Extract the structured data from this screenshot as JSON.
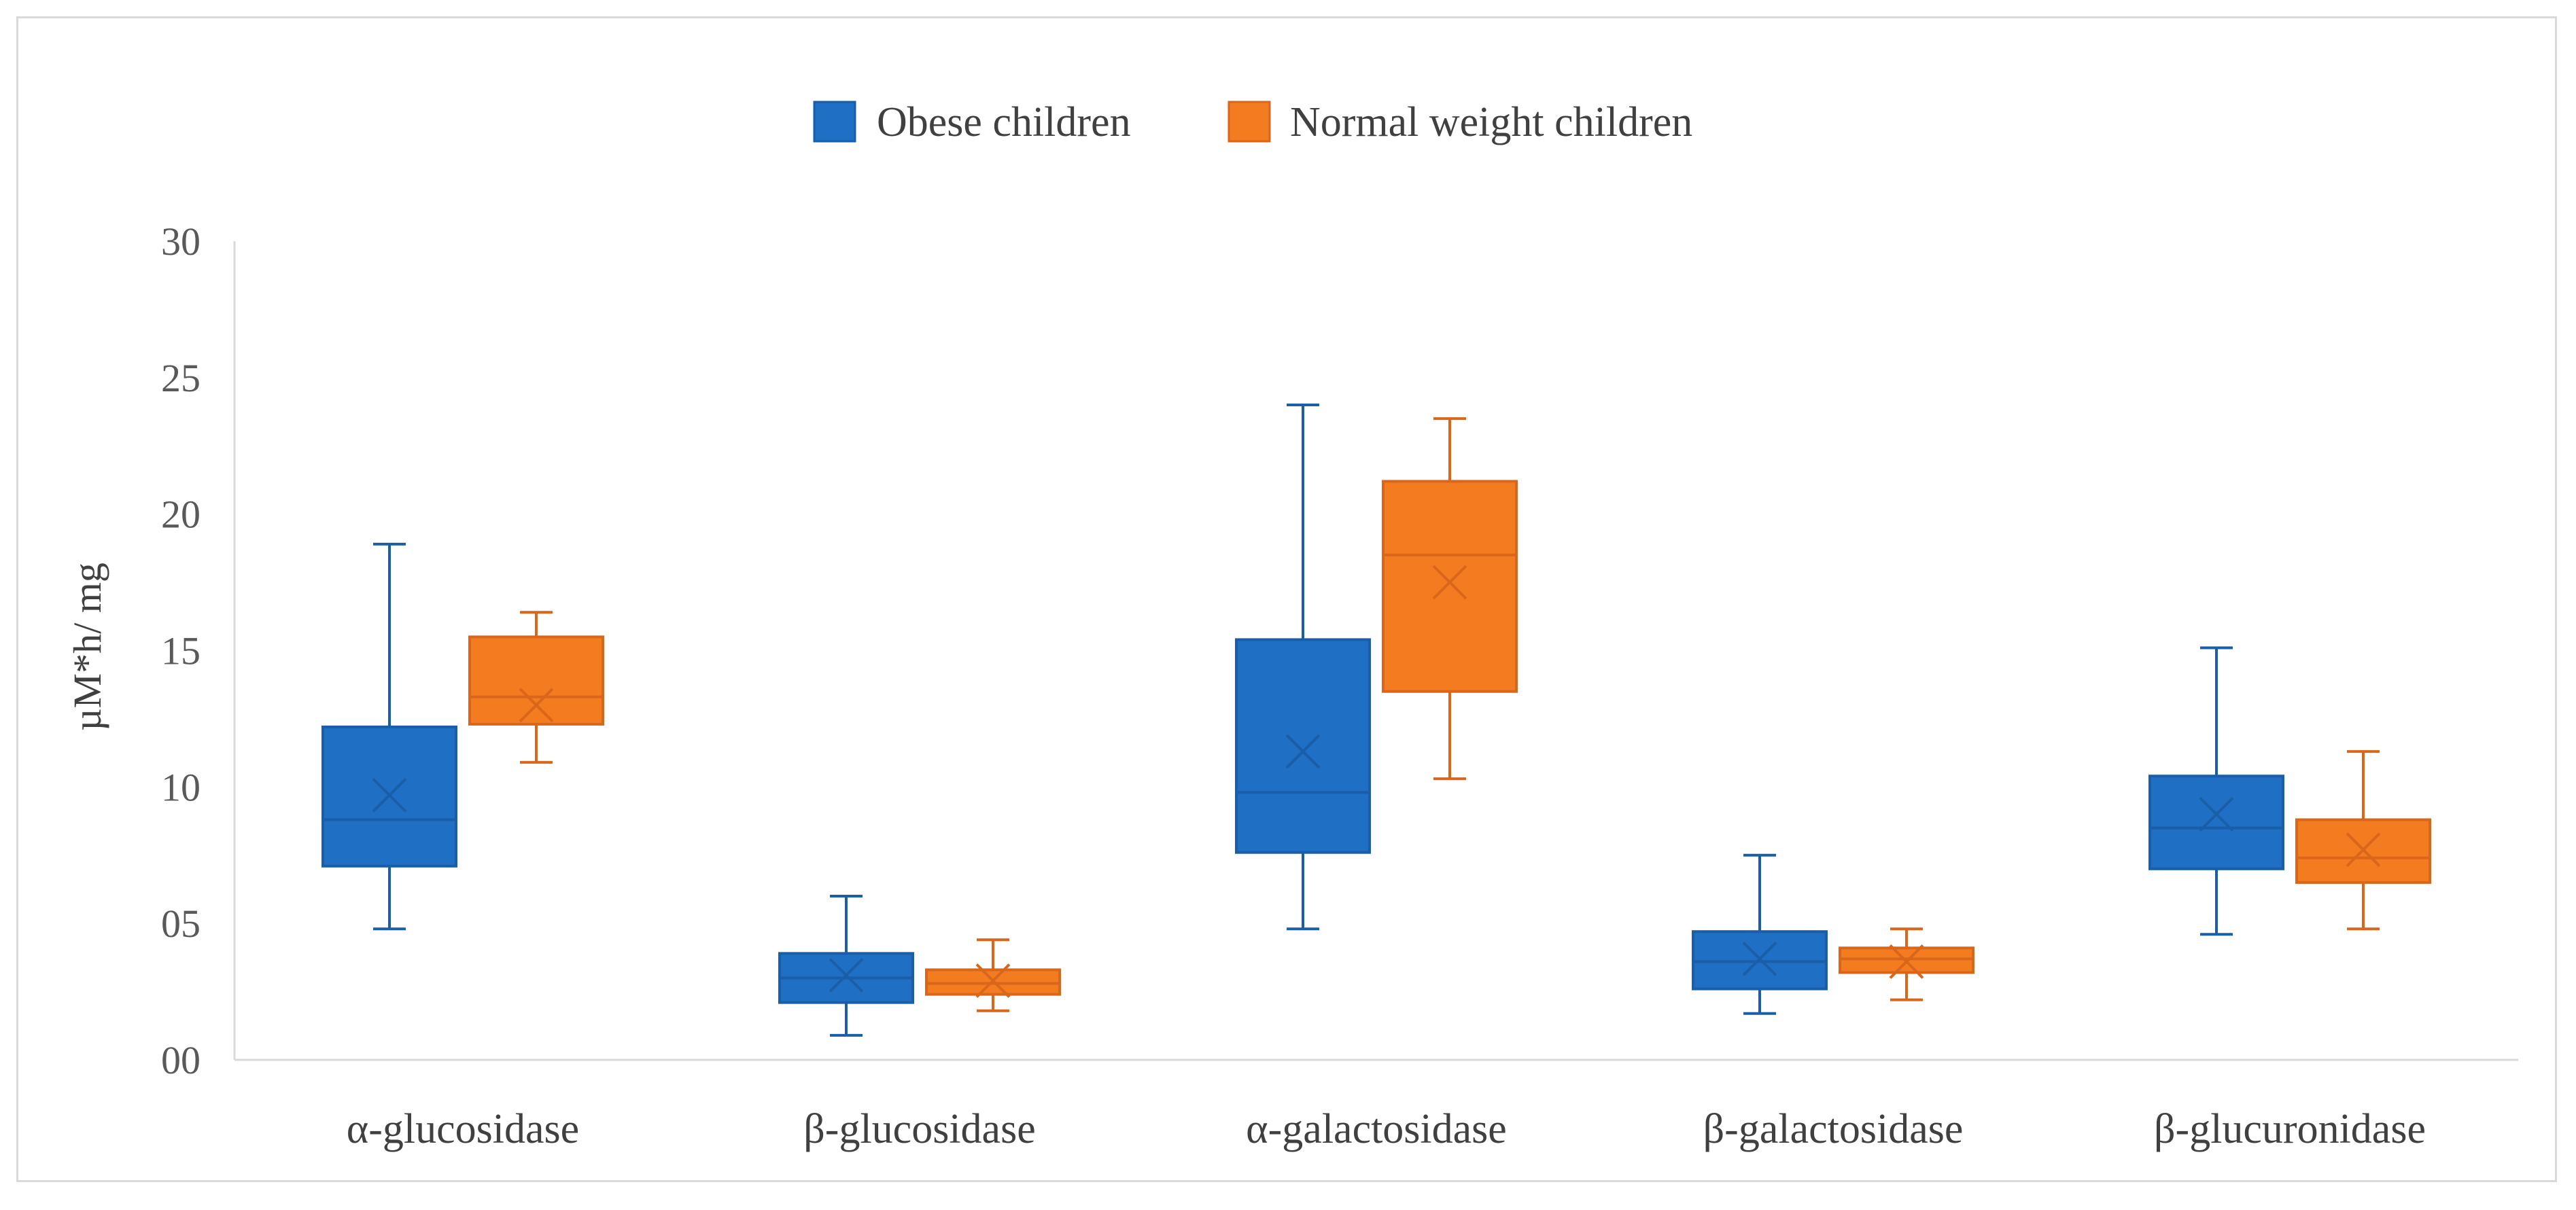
{
  "chart_data": {
    "type": "boxplot",
    "title": "",
    "xlabel": "",
    "ylabel": "µM*h/ mg",
    "ylim": [
      0,
      30
    ],
    "y_ticks": [
      {
        "value": 0,
        "label": "00"
      },
      {
        "value": 5,
        "label": "05"
      },
      {
        "value": 10,
        "label": "10"
      },
      {
        "value": 15,
        "label": "15"
      },
      {
        "value": 20,
        "label": "20"
      },
      {
        "value": 25,
        "label": "25"
      },
      {
        "value": 30,
        "label": "30"
      }
    ],
    "grid": false,
    "legend_position": "top-center",
    "categories": [
      "α-glucosidase",
      "β-glucosidase",
      "α-galactosidase",
      "β-galactosidase",
      "β-glucuronidase"
    ],
    "series": [
      {
        "name": "Obese children",
        "color": "#1f6fc5",
        "edge_color": "#1a5ea8",
        "boxes": [
          {
            "min": 4.8,
            "q1": 7.1,
            "median": 8.8,
            "q3": 12.2,
            "max": 18.9,
            "mean": 9.7
          },
          {
            "min": 0.9,
            "q1": 2.1,
            "median": 3.0,
            "q3": 3.9,
            "max": 6.0,
            "mean": 3.1
          },
          {
            "min": 4.8,
            "q1": 7.6,
            "median": 9.8,
            "q3": 15.4,
            "max": 24.0,
            "mean": 11.3
          },
          {
            "min": 1.7,
            "q1": 2.6,
            "median": 3.6,
            "q3": 4.7,
            "max": 7.5,
            "mean": 3.7
          },
          {
            "min": 4.6,
            "q1": 7.0,
            "median": 8.5,
            "q3": 10.4,
            "max": 15.1,
            "mean": 9.0
          }
        ]
      },
      {
        "name": "Normal weight children",
        "color": "#f47c20",
        "edge_color": "#d9661a",
        "boxes": [
          {
            "min": 10.9,
            "q1": 12.3,
            "median": 13.3,
            "q3": 15.5,
            "max": 16.4,
            "mean": 13.0
          },
          {
            "min": 1.8,
            "q1": 2.4,
            "median": 2.8,
            "q3": 3.3,
            "max": 4.4,
            "mean": 2.9
          },
          {
            "min": 10.3,
            "q1": 13.5,
            "median": 18.5,
            "q3": 21.2,
            "max": 23.5,
            "mean": 17.5
          },
          {
            "min": 2.2,
            "q1": 3.2,
            "median": 3.7,
            "q3": 4.1,
            "max": 4.8,
            "mean": 3.6
          },
          {
            "min": 4.8,
            "q1": 6.5,
            "median": 7.4,
            "q3": 8.8,
            "max": 11.3,
            "mean": 7.7
          }
        ]
      }
    ]
  }
}
